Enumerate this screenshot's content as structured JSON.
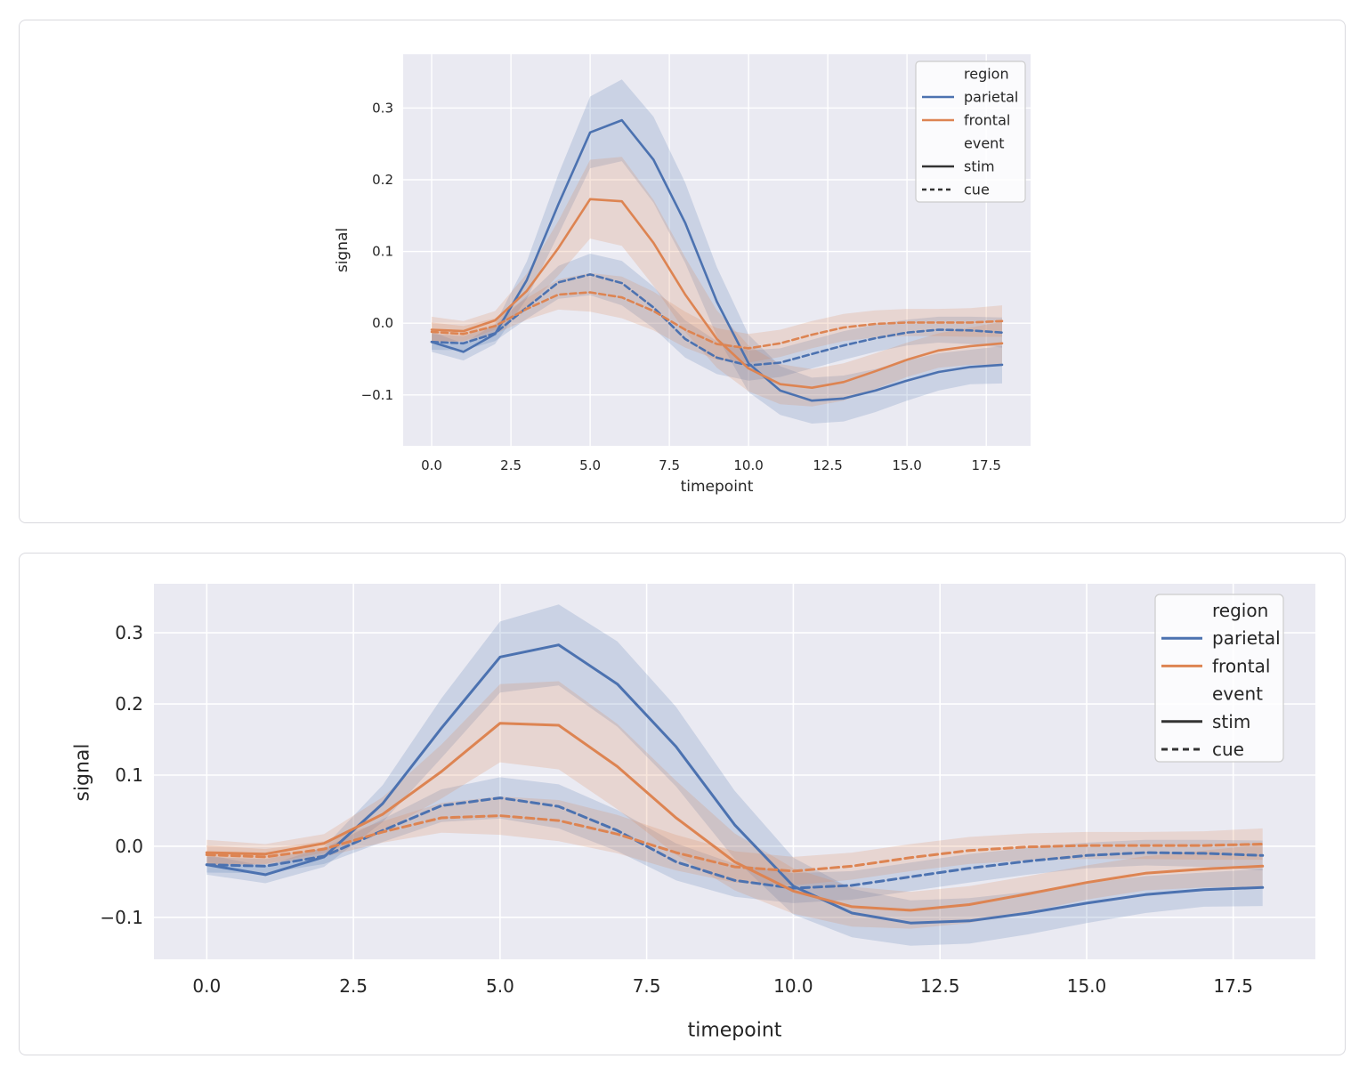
{
  "chart_data": {
    "type": "line",
    "title": "",
    "xlabel": "timepoint",
    "ylabel": "signal",
    "x": [
      0,
      1,
      2,
      3,
      4,
      5,
      6,
      7,
      8,
      9,
      10,
      11,
      12,
      13,
      14,
      15,
      16,
      17,
      18
    ],
    "xticks": [
      "0.0",
      "2.5",
      "5.0",
      "7.5",
      "10.0",
      "12.5",
      "15.0",
      "17.5"
    ],
    "xtick_values": [
      0,
      2.5,
      5,
      7.5,
      10,
      12.5,
      15,
      17.5
    ],
    "yticks": [
      "0.3",
      "0.2",
      "0.1",
      "0.0",
      "−0.1"
    ],
    "ytick_values": [
      0.3,
      0.2,
      0.1,
      0.0,
      -0.1
    ],
    "xlim": [
      -0.9,
      18.9
    ],
    "grid": true,
    "legend": {
      "position": "upper right",
      "groups": [
        {
          "title": "region",
          "entries": [
            {
              "label": "parietal",
              "color": "#4C72B0",
              "dash": "solid"
            },
            {
              "label": "frontal",
              "color": "#DD8452",
              "dash": "solid"
            }
          ]
        },
        {
          "title": "event",
          "entries": [
            {
              "label": "stim",
              "color": "#333333",
              "dash": "solid"
            },
            {
              "label": "cue",
              "color": "#333333",
              "dash": "dashed"
            }
          ]
        }
      ]
    },
    "series": [
      {
        "name": "parietal-stim",
        "region": "parietal",
        "event": "stim",
        "color": "#4C72B0",
        "style": "solid",
        "values": [
          -0.026,
          -0.04,
          -0.015,
          0.06,
          0.166,
          0.266,
          0.283,
          0.228,
          0.14,
          0.03,
          -0.056,
          -0.094,
          -0.108,
          -0.105,
          -0.094,
          -0.08,
          -0.068,
          -0.061,
          -0.058
        ],
        "ci": [
          0.014,
          0.012,
          0.014,
          0.026,
          0.042,
          0.05,
          0.057,
          0.06,
          0.056,
          0.048,
          0.04,
          0.034,
          0.032,
          0.032,
          0.03,
          0.028,
          0.026,
          0.024,
          0.026
        ]
      },
      {
        "name": "parietal-cue",
        "region": "parietal",
        "event": "cue",
        "color": "#4C72B0",
        "style": "dashed",
        "values": [
          -0.026,
          -0.028,
          -0.014,
          0.022,
          0.057,
          0.068,
          0.056,
          0.022,
          -0.022,
          -0.048,
          -0.059,
          -0.055,
          -0.043,
          -0.031,
          -0.021,
          -0.013,
          -0.009,
          -0.01,
          -0.013
        ],
        "ci": [
          0.011,
          0.01,
          0.011,
          0.016,
          0.023,
          0.029,
          0.031,
          0.029,
          0.026,
          0.023,
          0.021,
          0.02,
          0.02,
          0.02,
          0.019,
          0.018,
          0.018,
          0.019,
          0.021
        ]
      },
      {
        "name": "frontal-stim",
        "region": "frontal",
        "event": "stim",
        "color": "#DD8452",
        "style": "solid",
        "values": [
          -0.009,
          -0.011,
          0.004,
          0.045,
          0.105,
          0.173,
          0.17,
          0.112,
          0.04,
          -0.022,
          -0.063,
          -0.085,
          -0.09,
          -0.082,
          -0.067,
          -0.051,
          -0.038,
          -0.032,
          -0.028
        ],
        "ci": [
          0.018,
          0.014,
          0.013,
          0.024,
          0.038,
          0.055,
          0.062,
          0.06,
          0.052,
          0.04,
          0.032,
          0.028,
          0.026,
          0.026,
          0.025,
          0.024,
          0.024,
          0.026,
          0.03
        ]
      },
      {
        "name": "frontal-cue",
        "region": "frontal",
        "event": "cue",
        "color": "#DD8452",
        "style": "dashed",
        "values": [
          -0.012,
          -0.015,
          -0.004,
          0.02,
          0.04,
          0.043,
          0.036,
          0.017,
          -0.009,
          -0.029,
          -0.035,
          -0.028,
          -0.016,
          -0.006,
          -0.001,
          0.001,
          0.001,
          0.001,
          0.003
        ],
        "ci": [
          0.013,
          0.011,
          0.011,
          0.015,
          0.021,
          0.027,
          0.029,
          0.027,
          0.025,
          0.022,
          0.02,
          0.019,
          0.019,
          0.019,
          0.019,
          0.019,
          0.019,
          0.02,
          0.022
        ]
      }
    ],
    "panels": [
      {
        "name": "top",
        "xlabel": "timepoint",
        "ylabel": "signal"
      },
      {
        "name": "bottom",
        "xlabel": "timepoint",
        "ylabel": "signal"
      }
    ],
    "colors": {
      "parietal": "#4C72B0",
      "frontal": "#DD8452",
      "legend_line": "#333333",
      "plot_bg": "#EAEAF2",
      "grid": "#FFFFFF",
      "text": "#262626",
      "card_border": "#D9D9DE",
      "legend_bg": "rgba(255,255,255,0.8)",
      "legend_border": "#CCCCCC"
    }
  }
}
